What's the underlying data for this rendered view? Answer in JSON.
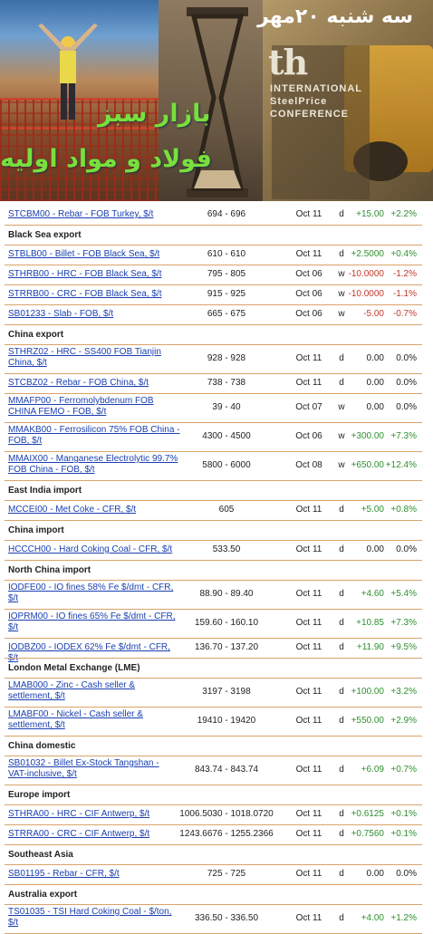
{
  "banner": {
    "date": "سه شنبه ۲۰مهر",
    "title_line1": "بازار سبز",
    "title_line2": "فولاد و مواد اولیه",
    "conference_logo": "th",
    "conference_line1": "INTERNATIONAL",
    "conference_line2": "SteelPrice",
    "conference_line3": "CONFERENCE"
  },
  "top_row": {
    "name": "STCBM00 - Rebar - FOB Turkey, $/t",
    "range": "694 - 696",
    "date": "Oct 11",
    "ind": "d",
    "chg": "+15.00",
    "pct": "+2.2%"
  },
  "sections": [
    {
      "title": "Black Sea export",
      "rows": [
        {
          "name": "STBLB00 - Billet - FOB Black Sea, $/t",
          "range": "610 - 610",
          "date": "Oct 11",
          "ind": "d",
          "chg": "+2.5000",
          "pct": "+0.4%"
        },
        {
          "name": "STHRB00 - HRC - FOB Black Sea, $/t",
          "range": "795 - 805",
          "date": "Oct 06",
          "ind": "w",
          "chg": "-10.0000",
          "pct": "-1.2%"
        },
        {
          "name": "STRRB00 - CRC - FOB Black Sea, $/t",
          "range": "915 - 925",
          "date": "Oct 06",
          "ind": "w",
          "chg": "-10.0000",
          "pct": "-1.1%"
        },
        {
          "name": "SB01233 - Slab - FOB, $/t",
          "range": "665 - 675",
          "date": "Oct 06",
          "ind": "w",
          "chg": "-5.00",
          "pct": "-0.7%"
        }
      ]
    },
    {
      "title": "China export",
      "rows": [
        {
          "name": "STHRZ02 - HRC - SS400 FOB Tianjin China, $/t",
          "range": "928 - 928",
          "date": "Oct 11",
          "ind": "d",
          "chg": "0.00",
          "pct": "0.0%"
        },
        {
          "name": "STCBZ02 - Rebar - FOB China, $/t",
          "range": "738 - 738",
          "date": "Oct 11",
          "ind": "d",
          "chg": "0.00",
          "pct": "0.0%"
        },
        {
          "name": "MMAFP00 - Ferromolybdenum FOB CHINA FEMO - FOB, $/t",
          "range": "39 - 40",
          "date": "Oct 07",
          "ind": "w",
          "chg": "0.00",
          "pct": "0.0%"
        },
        {
          "name": "MMAKB00 - Ferrosilicon 75% FOB China - FOB, $/t",
          "range": "4300 - 4500",
          "date": "Oct 06",
          "ind": "w",
          "chg": "+300.00",
          "pct": "+7.3%"
        },
        {
          "name": "MMAIX00 - Manganese Electrolytic 99.7% FOB China - FOB, $/t",
          "range": "5800 - 6000",
          "date": "Oct 08",
          "ind": "w",
          "chg": "+650.00",
          "pct": "+12.4%"
        }
      ]
    },
    {
      "title": "East India import",
      "rows": [
        {
          "name": "MCCEI00 - Met Coke - CFR, $/t",
          "range": "605",
          "date": "Oct 11",
          "ind": "d",
          "chg": "+5.00",
          "pct": "+0.8%"
        }
      ]
    },
    {
      "title": "China import",
      "rows": [
        {
          "name": "HCCCH00 - Hard Coking Coal - CFR, $/t",
          "range": "533.50",
          "date": "Oct 11",
          "ind": "d",
          "chg": "0.00",
          "pct": "0.0%"
        }
      ]
    },
    {
      "title": "North China import",
      "rows": [
        {
          "name": "IODFE00 - IO fines 58% Fe $/dmt - CFR, $/t",
          "range": "88.90 - 89.40",
          "date": "Oct 11",
          "ind": "d",
          "chg": "+4.60",
          "pct": "+5.4%"
        },
        {
          "name": "IOPRM00 - IO fines 65% Fe $/dmt - CFR, $/t",
          "range": "159.60 - 160.10",
          "date": "Oct 11",
          "ind": "d",
          "chg": "+10.85",
          "pct": "+7.3%"
        },
        {
          "name": "IODBZ00 - IODEX 62% Fe $/dmt - CFR, $/t",
          "range": "136.70 - 137.20",
          "date": "Oct 11",
          "ind": "d",
          "chg": "+11.90",
          "pct": "+9.5%"
        }
      ]
    },
    {
      "title": "London Metal Exchange (LME)",
      "rows": [
        {
          "name": "LMAB000 - Zinc - Cash seller & settlement, $/t",
          "range": "3197 - 3198",
          "date": "Oct 11",
          "ind": "d",
          "chg": "+100.00",
          "pct": "+3.2%"
        },
        {
          "name": "LMABF00 - Nickel - Cash seller & settlement, $/t",
          "range": "19410 - 19420",
          "date": "Oct 11",
          "ind": "d",
          "chg": "+550.00",
          "pct": "+2.9%"
        }
      ]
    },
    {
      "title": "China domestic",
      "rows": [
        {
          "name": "SB01032 - Billet Ex-Stock Tangshan - VAT-inclusive, $/t",
          "range": "843.74 - 843.74",
          "date": "Oct 11",
          "ind": "d",
          "chg": "+6.09",
          "pct": "+0.7%"
        }
      ]
    },
    {
      "title": "Europe import",
      "rows": [
        {
          "name": "STHRA00 - HRC - CIF Antwerp, $/t",
          "range": "1006.5030 - 1018.0720",
          "date": "Oct 11",
          "ind": "d",
          "chg": "+0.6125",
          "pct": "+0.1%"
        },
        {
          "name": "STRRA00 - CRC - CIF Antwerp, $/t",
          "range": "1243.6676 - 1255.2366",
          "date": "Oct 11",
          "ind": "d",
          "chg": "+0.7560",
          "pct": "+0.1%"
        }
      ]
    },
    {
      "title": "Southeast Asia",
      "rows": [
        {
          "name": "SB01195 - Rebar - CFR, $/t",
          "range": "725 - 725",
          "date": "Oct 11",
          "ind": "d",
          "chg": "0.00",
          "pct": "0.0%"
        }
      ]
    },
    {
      "title": "Australia export",
      "rows": [
        {
          "name": "TS01035 - TSI Hard Coking Coal - $/ton, $/t",
          "range": "336.50 - 336.50",
          "date": "Oct 11",
          "ind": "d",
          "chg": "+4.00",
          "pct": "+1.2%"
        }
      ]
    }
  ]
}
